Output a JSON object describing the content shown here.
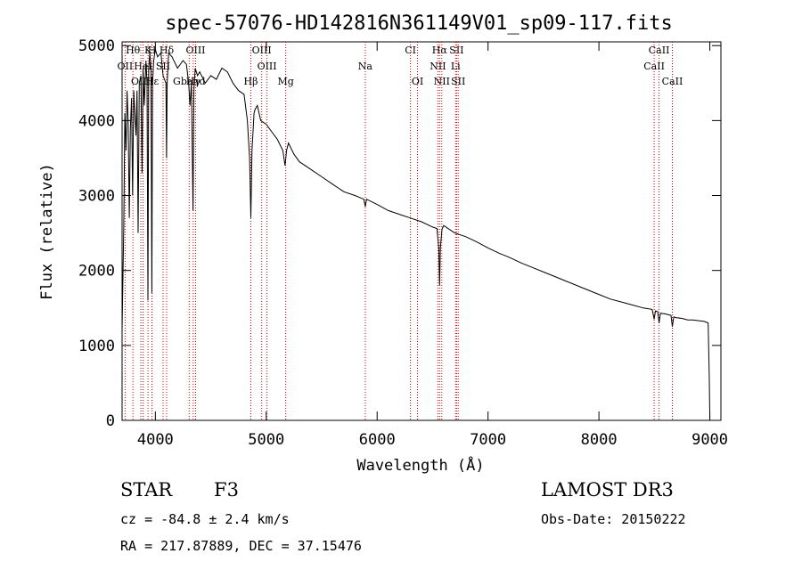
{
  "chart_data": {
    "type": "line",
    "title": "spec-57076-HD142816N361149V01_sp09-117.fits",
    "xlabel": "Wavelength (Å)",
    "ylabel": "Flux (relative)",
    "xlim": [
      3700,
      9100
    ],
    "ylim": [
      0,
      5050
    ],
    "xticks": [
      4000,
      5000,
      6000,
      7000,
      8000,
      9000
    ],
    "yticks": [
      0,
      1000,
      2000,
      3000,
      4000,
      5000
    ],
    "series": [
      {
        "name": "flux",
        "x": [
          3700,
          3715,
          3725,
          3735,
          3745,
          3755,
          3765,
          3775,
          3785,
          3795,
          3805,
          3815,
          3825,
          3835,
          3845,
          3855,
          3870,
          3880,
          3890,
          3900,
          3915,
          3925,
          3933,
          3940,
          3950,
          3960,
          3968,
          3975,
          3985,
          4000,
          4020,
          4050,
          4070,
          4095,
          4101,
          4107,
          4120,
          4150,
          4200,
          4250,
          4280,
          4300,
          4312,
          4325,
          4340,
          4348,
          4360,
          4380,
          4400,
          4450,
          4500,
          4550,
          4600,
          4650,
          4700,
          4750,
          4800,
          4830,
          4850,
          4861,
          4872,
          4890,
          4900,
          4920,
          4950,
          5000,
          5050,
          5100,
          5150,
          5170,
          5183,
          5200,
          5250,
          5300,
          5400,
          5500,
          5600,
          5700,
          5800,
          5880,
          5893,
          5905,
          6000,
          6100,
          6200,
          6300,
          6400,
          6500,
          6540,
          6556,
          6563,
          6570,
          6585,
          6600,
          6700,
          6800,
          6900,
          7000,
          7100,
          7200,
          7300,
          7400,
          7500,
          7600,
          7700,
          7800,
          7900,
          8000,
          8100,
          8200,
          8300,
          8400,
          8480,
          8498,
          8510,
          8530,
          8542,
          8555,
          8600,
          8650,
          8662,
          8675,
          8700,
          8750,
          8800,
          8850,
          8900,
          8950,
          8985,
          8995,
          9000
        ],
        "values": [
          1200,
          2600,
          4100,
          3600,
          4400,
          4000,
          2700,
          3900,
          4300,
          3000,
          4400,
          4100,
          3800,
          4400,
          2500,
          4500,
          4600,
          3300,
          4700,
          4200,
          4800,
          4500,
          1600,
          4700,
          4900,
          4700,
          1700,
          4500,
          4800,
          4950,
          4850,
          4900,
          4600,
          4500,
          3500,
          4500,
          4900,
          4850,
          4700,
          4800,
          4750,
          4500,
          4200,
          4500,
          2800,
          4400,
          4700,
          4600,
          4650,
          4500,
          4600,
          4550,
          4700,
          4650,
          4500,
          4400,
          4350,
          4000,
          3500,
          2700,
          3600,
          4100,
          4150,
          4200,
          4000,
          3950,
          3850,
          3750,
          3600,
          3400,
          3600,
          3700,
          3550,
          3450,
          3350,
          3250,
          3150,
          3050,
          3000,
          2950,
          2850,
          2950,
          2880,
          2800,
          2750,
          2700,
          2650,
          2580,
          2560,
          2300,
          1800,
          2300,
          2550,
          2600,
          2500,
          2450,
          2380,
          2300,
          2230,
          2170,
          2100,
          2040,
          1980,
          1920,
          1860,
          1800,
          1740,
          1680,
          1620,
          1580,
          1540,
          1500,
          1480,
          1350,
          1460,
          1450,
          1300,
          1430,
          1420,
          1400,
          1250,
          1380,
          1370,
          1360,
          1340,
          1340,
          1330,
          1320,
          1300,
          600,
          0
        ]
      }
    ],
    "line_markers": [
      {
        "label": "Hθ",
        "x": 3798,
        "row": 0
      },
      {
        "label": "K",
        "x": 3934,
        "row": 0
      },
      {
        "label": "H",
        "x": 3969,
        "row": 0
      },
      {
        "label": "Hδ",
        "x": 4102,
        "row": 0
      },
      {
        "label": "OIII",
        "x": 4363,
        "row": 0
      },
      {
        "label": "OIII",
        "x": 4959,
        "row": 0
      },
      {
        "label": "CI",
        "x": 6300,
        "row": 0
      },
      {
        "label": "Hα",
        "x": 6563,
        "row": 0
      },
      {
        "label": "SII",
        "x": 6717,
        "row": 0
      },
      {
        "label": "CaII",
        "x": 8542,
        "row": 0
      },
      {
        "label": "OII",
        "x": 3727,
        "row": 1
      },
      {
        "label": "HeI",
        "x": 3889,
        "row": 1
      },
      {
        "label": "SII",
        "x": 4070,
        "row": 1
      },
      {
        "label": "OIII",
        "x": 5007,
        "row": 1
      },
      {
        "label": "Na",
        "x": 5893,
        "row": 1
      },
      {
        "label": "NII",
        "x": 6548,
        "row": 1
      },
      {
        "label": "Li",
        "x": 6708,
        "row": 1
      },
      {
        "label": "CaII",
        "x": 8498,
        "row": 1
      },
      {
        "label": "OIII",
        "x": 3869,
        "row": 2
      },
      {
        "label": "Hε",
        "x": 3970,
        "row": 2
      },
      {
        "label": "Gband",
        "x": 4305,
        "row": 2
      },
      {
        "label": "Hγ",
        "x": 4341,
        "row": 2
      },
      {
        "label": "Hβ",
        "x": 4861,
        "row": 2
      },
      {
        "label": "Mg",
        "x": 5175,
        "row": 2
      },
      {
        "label": "OI",
        "x": 6364,
        "row": 2
      },
      {
        "label": "NII",
        "x": 6583,
        "row": 2
      },
      {
        "label": "SII",
        "x": 6731,
        "row": 2
      },
      {
        "label": "CaII",
        "x": 8662,
        "row": 2
      }
    ]
  },
  "info": {
    "object_class": "STAR",
    "subclass": "F3",
    "survey": "LAMOST DR3",
    "redshift": "cz = -84.8 ± 2.4 km/s",
    "obs_date": "Obs-Date: 20150222",
    "coords": "RA = 217.87889, DEC =  37.15476"
  },
  "colors": {
    "line": "#000000",
    "marker": "#cc0000",
    "background": "#ffffff"
  }
}
